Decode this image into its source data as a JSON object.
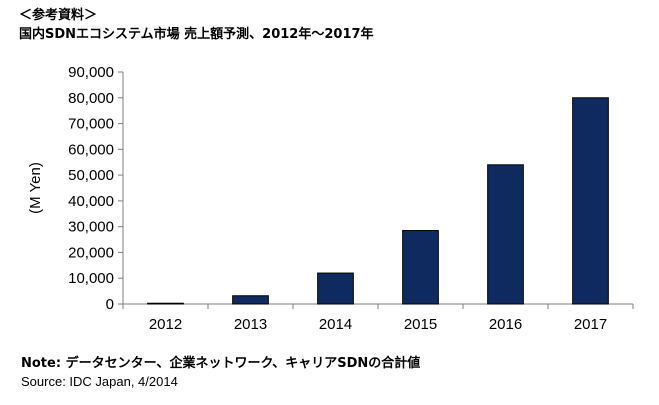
{
  "header": {
    "reference_label": "＜参考資料＞"
  },
  "chart_data": {
    "type": "bar",
    "title": "国内SDNエコシステム市場 売上額予測、2012年～2017年",
    "xlabel": "",
    "ylabel": "(M Yen)",
    "categories": [
      "2012",
      "2013",
      "2014",
      "2015",
      "2016",
      "2017"
    ],
    "values": [
      300,
      3200,
      12000,
      28500,
      54000,
      80000
    ],
    "ylim": [
      0,
      90000
    ],
    "yticks": [
      0,
      10000,
      20000,
      30000,
      40000,
      50000,
      60000,
      70000,
      80000,
      90000
    ],
    "ytick_labels": [
      "0",
      "10,000",
      "20,000",
      "30,000",
      "40,000",
      "50,000",
      "60,000",
      "70,000",
      "80,000",
      "90,000"
    ],
    "bar_color": "#0f2a5e",
    "grid": false,
    "legend": "none"
  },
  "footer": {
    "note_label": "Note:",
    "note_text": " データセンター、企業ネットワーク、キャリアSDNの合計値",
    "source": "Source: IDC Japan, 4/2014"
  }
}
